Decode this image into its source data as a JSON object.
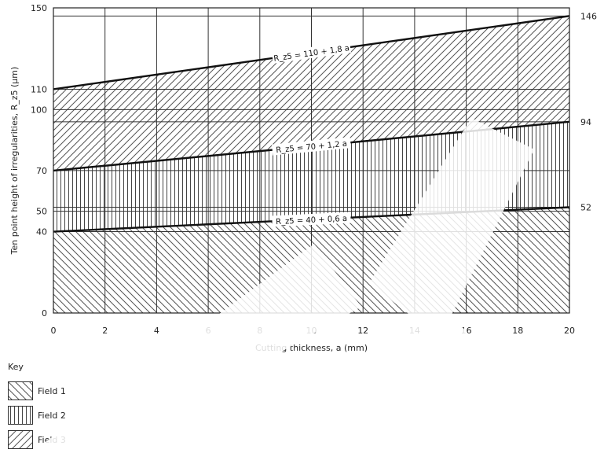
{
  "chart_data": {
    "type": "area",
    "xlabel": "Cutting thickness, a (mm)",
    "ylabel": "Ten point height of irregularities, R_z5 (µm)",
    "xlim": [
      0,
      20
    ],
    "ylim": [
      0,
      150
    ],
    "x_ticks": [
      "0",
      "2",
      "4",
      "6",
      "8",
      "10",
      "12",
      "14",
      "16",
      "18",
      "20"
    ],
    "y_ticks_left": [
      {
        "value": 0,
        "label": "0"
      },
      {
        "value": 40,
        "label": "40"
      },
      {
        "value": 50,
        "label": "50"
      },
      {
        "value": 70,
        "label": "70"
      },
      {
        "value": 100,
        "label": "100"
      },
      {
        "value": 110,
        "label": "110"
      },
      {
        "value": 150,
        "label": "150"
      }
    ],
    "y_ticks_right": [
      {
        "value": 52,
        "label": "52"
      },
      {
        "value": 94,
        "label": "94"
      },
      {
        "value": 146,
        "label": "146"
      }
    ],
    "grid": true,
    "lines": [
      {
        "equation": "R_z5 = 40 + 0,6 a",
        "intercept": 40,
        "slope": 0.6,
        "label_x": 10
      },
      {
        "equation": "R_z5 = 70 + 1,2 a",
        "intercept": 70,
        "slope": 1.2,
        "label_x": 10
      },
      {
        "equation": "R_z5 = 110 + 1,8 a",
        "intercept": 110,
        "slope": 1.8,
        "label_x": 10
      }
    ],
    "fields": [
      {
        "name": "Field 1",
        "pattern": "diag-back",
        "lower": "axis",
        "upper": 0
      },
      {
        "name": "Field 2",
        "pattern": "vertical",
        "lower": 0,
        "upper": 1
      },
      {
        "name": "Field 3",
        "pattern": "diag-forward",
        "lower": 1,
        "upper": 2
      }
    ]
  },
  "key": {
    "title": "Key",
    "items": [
      "Field 1",
      "Field 2",
      "Field 3"
    ]
  }
}
